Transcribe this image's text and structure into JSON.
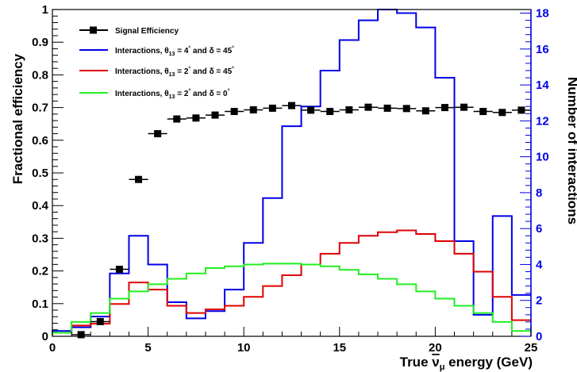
{
  "chart_data": {
    "type": "line",
    "xlabel_parts": {
      "pre": "True ",
      "nu": "ν",
      "mu": "μ",
      "post": " energy (GeV)"
    },
    "ylabel": "Fractional efficiency",
    "y2label": "Number of interactions",
    "xlim": [
      0,
      25
    ],
    "ylim": [
      0,
      1
    ],
    "y2lim": [
      0,
      18.2
    ],
    "x_ticks": [
      "0",
      "5",
      "10",
      "15",
      "20",
      "25"
    ],
    "y_ticks": [
      "0",
      "0.1",
      "0.2",
      "0.3",
      "0.4",
      "0.5",
      "0.6",
      "0.7",
      "0.8",
      "0.9",
      "1"
    ],
    "y2_ticks": [
      "0",
      "2",
      "4",
      "6",
      "8",
      "10",
      "12",
      "14",
      "16",
      "18"
    ],
    "grid": false,
    "legend_position": "top-left",
    "efficiency_series": {
      "name": "Signal Efficiency",
      "color": "#000000",
      "x": [
        1.5,
        2.5,
        3.5,
        4.5,
        5.5,
        6.5,
        7.5,
        8.5,
        9.5,
        10.5,
        11.5,
        12.5,
        13.5,
        14.5,
        15.5,
        16.5,
        17.5,
        18.5,
        19.5,
        20.5,
        21.5,
        22.5,
        23.5,
        24.5
      ],
      "values": [
        0.005,
        0.045,
        0.205,
        0.48,
        0.62,
        0.665,
        0.668,
        0.677,
        0.688,
        0.693,
        0.698,
        0.706,
        0.692,
        0.688,
        0.693,
        0.701,
        0.698,
        0.697,
        0.69,
        0.7,
        0.701,
        0.688,
        0.685,
        0.692
      ]
    },
    "histograms": {
      "bin_edges": [
        0,
        1,
        2,
        3,
        4,
        5,
        6,
        7,
        8,
        9,
        10,
        11,
        12,
        13,
        14,
        15,
        16,
        17,
        18,
        19,
        20,
        21,
        22,
        23,
        24,
        25
      ],
      "series": [
        {
          "name": "Interactions, θ13 = 4° and δ = 45°",
          "legend_parts": [
            "Interactions, θ",
            "13",
            " = 4",
            "°",
            " and δ = 45",
            "°"
          ],
          "color": "#0000e6",
          "values": [
            0.3,
            0.5,
            1.1,
            3.5,
            5.6,
            4.0,
            1.9,
            1.0,
            1.4,
            2.6,
            5.2,
            7.7,
            11.7,
            12.8,
            14.8,
            16.5,
            17.6,
            18.2,
            18.0,
            17.2,
            14.4,
            5.3,
            1.2,
            6.7,
            2.3
          ]
        },
        {
          "name": "Interactions, θ13 = 2° and δ = 45°",
          "legend_parts": [
            "Interactions, θ",
            "13",
            " = 2",
            "°",
            " and δ = 45",
            "°"
          ],
          "color": "#e00000",
          "values": [
            0.2,
            0.6,
            0.7,
            1.8,
            3.0,
            2.6,
            1.7,
            1.3,
            1.5,
            1.7,
            2.2,
            2.8,
            3.4,
            4.0,
            4.6,
            5.2,
            5.6,
            5.8,
            5.9,
            5.7,
            5.3,
            4.6,
            3.6,
            2.2,
            0.9
          ]
        },
        {
          "name": "Interactions, θ13 = 2° and δ = 0°",
          "legend_parts": [
            "Interactions, θ",
            "13",
            " = 2",
            "°",
            " and δ = 0",
            "°"
          ],
          "color": "#22ee22",
          "values": [
            0.2,
            0.8,
            1.3,
            2.1,
            2.5,
            2.9,
            3.2,
            3.5,
            3.8,
            3.9,
            4.0,
            4.05,
            4.05,
            4.0,
            3.9,
            3.7,
            3.45,
            3.2,
            2.9,
            2.5,
            2.1,
            1.7,
            1.3,
            0.8,
            0.3
          ]
        }
      ]
    }
  }
}
